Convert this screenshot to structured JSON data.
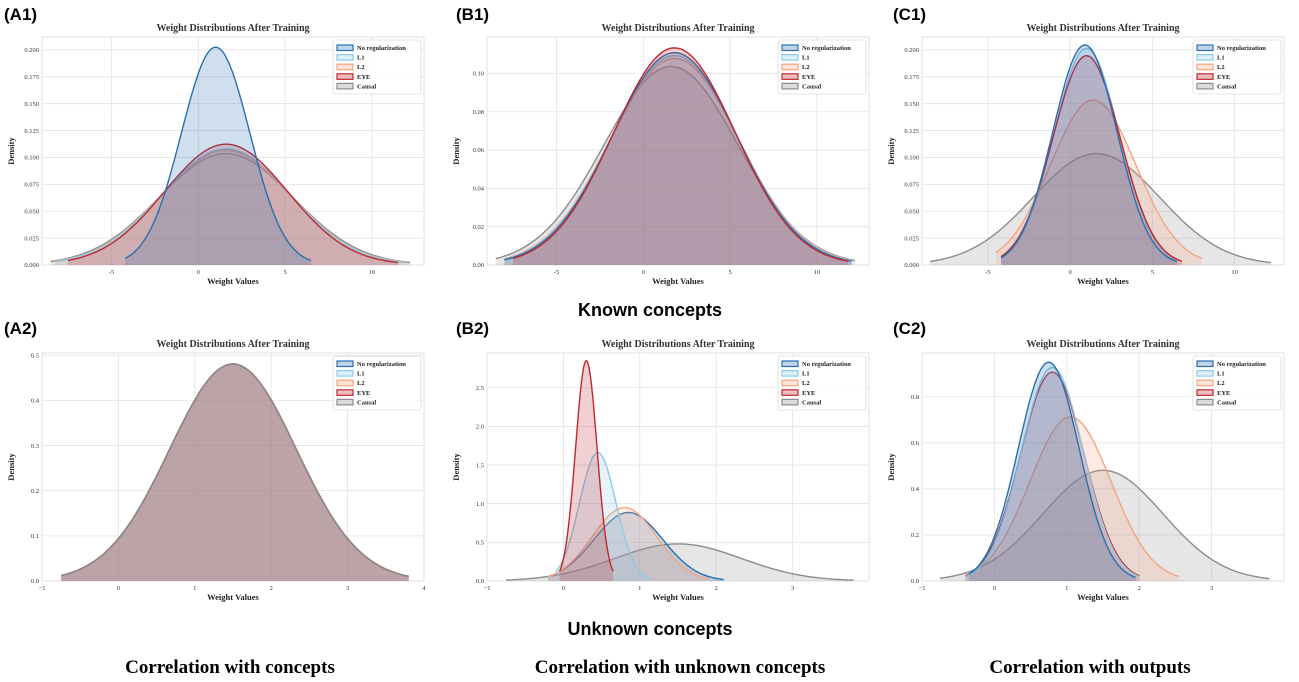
{
  "panels": [
    {
      "label": "(A1)"
    },
    {
      "label": "(B1)"
    },
    {
      "label": "(C1)"
    },
    {
      "label": "(A2)"
    },
    {
      "label": "(B2)"
    },
    {
      "label": "(C2)"
    }
  ],
  "row_labels": {
    "known": "Known concepts",
    "unknown": "Unknown concepts"
  },
  "column_labels": {
    "a": "Correlation with concepts",
    "b": "Correlation with unknown concepts",
    "c": "Correlation with outputs"
  },
  "colors": {
    "No regularization": "#2b6fb0",
    "L1": "#8ecae6",
    "L2": "#f4a582",
    "EYE": "#c1272d",
    "Causal": "#8c8c8c"
  },
  "chart_data": [
    {
      "type": "area",
      "title": "Weight Distributions After Training",
      "xlabel": "Weight Values",
      "ylabel": "Density",
      "xlim": [
        -9,
        13
      ],
      "ylim": [
        0,
        0.212
      ],
      "xticks": [
        -5,
        0,
        5,
        10
      ],
      "xtick_labels": [
        "-5",
        "0",
        "5",
        "10"
      ],
      "yticks": [
        0,
        0.025,
        0.05,
        0.075,
        0.1,
        0.125,
        0.15,
        0.175,
        0.2
      ],
      "ytick_labels": [
        "0.000",
        "0.025",
        "0.050",
        "0.075",
        "0.100",
        "0.125",
        "0.150",
        "0.175",
        "0.200"
      ],
      "grid": true,
      "legend": "top-right",
      "series": [
        {
          "name": "Causal",
          "mean": 1.6,
          "sd": 3.85,
          "range": [
            -8.5,
            12.2
          ]
        },
        {
          "name": "L2",
          "mean": 1.6,
          "sd": 3.75,
          "range": [
            -8.3,
            12
          ]
        },
        {
          "name": "L1",
          "mean": 1.6,
          "sd": 3.7,
          "range": [
            -8.2,
            11.8
          ]
        },
        {
          "name": "EYE",
          "mean": 1.6,
          "sd": 3.55,
          "range": [
            -7.5,
            11.5
          ]
        },
        {
          "name": "No regularization",
          "mean": 1.0,
          "sd": 1.97,
          "range": [
            -4.2,
            6.5
          ]
        }
      ]
    },
    {
      "type": "area",
      "title": "Weight Distributions After Training",
      "xlabel": "Weight Values",
      "ylabel": "Density",
      "xlim": [
        -9,
        13
      ],
      "ylim": [
        0,
        0.119
      ],
      "xticks": [
        -5,
        0,
        5,
        10
      ],
      "xtick_labels": [
        "-5",
        "0",
        "5",
        "10"
      ],
      "yticks": [
        0,
        0.02,
        0.04,
        0.06,
        0.08,
        0.1
      ],
      "ytick_labels": [
        "0.00",
        "0.02",
        "0.04",
        "0.06",
        "0.08",
        "0.10"
      ],
      "grid": true,
      "legend": "top-right",
      "series": [
        {
          "name": "Causal",
          "mean": 1.6,
          "sd": 3.85,
          "range": [
            -8.5,
            12.2
          ]
        },
        {
          "name": "L2",
          "mean": 1.8,
          "sd": 3.7,
          "range": [
            -8,
            12
          ]
        },
        {
          "name": "L1",
          "mean": 1.8,
          "sd": 3.65,
          "range": [
            -8,
            12
          ]
        },
        {
          "name": "No regularization",
          "mean": 1.8,
          "sd": 3.6,
          "range": [
            -8,
            12
          ]
        },
        {
          "name": "EYE",
          "mean": 1.8,
          "sd": 3.52,
          "range": [
            -7.5,
            11.8
          ]
        }
      ]
    },
    {
      "type": "area",
      "title": "Weight Distributions After Training",
      "xlabel": "Weight Values",
      "ylabel": "Density",
      "xlim": [
        -9,
        13
      ],
      "ylim": [
        0,
        0.212
      ],
      "xticks": [
        -5,
        0,
        5,
        10
      ],
      "xtick_labels": [
        "-5",
        "0",
        "5",
        "10"
      ],
      "yticks": [
        0,
        0.025,
        0.05,
        0.075,
        0.1,
        0.125,
        0.15,
        0.175,
        0.2
      ],
      "ytick_labels": [
        "0.000",
        "0.025",
        "0.050",
        "0.075",
        "0.100",
        "0.125",
        "0.150",
        "0.175",
        "0.200"
      ],
      "grid": true,
      "legend": "top-right",
      "series": [
        {
          "name": "Causal",
          "mean": 1.6,
          "sd": 3.85,
          "range": [
            -8.5,
            12.2
          ]
        },
        {
          "name": "L2",
          "mean": 1.4,
          "sd": 2.6,
          "range": [
            -4.5,
            8
          ]
        },
        {
          "name": "L1",
          "mean": 1.0,
          "sd": 1.98,
          "range": [
            -4.2,
            6.5
          ]
        },
        {
          "name": "EYE",
          "mean": 1.0,
          "sd": 2.05,
          "range": [
            -4.2,
            6.8
          ]
        },
        {
          "name": "No regularization",
          "mean": 0.9,
          "sd": 1.95,
          "range": [
            -4.2,
            6.5
          ]
        }
      ]
    },
    {
      "type": "area",
      "title": "Weight Distributions After Training",
      "xlabel": "Weight Values",
      "ylabel": "Density",
      "xlim": [
        -1,
        4
      ],
      "ylim": [
        0,
        0.505
      ],
      "xticks": [
        -1,
        0,
        1,
        2,
        3,
        4
      ],
      "xtick_labels": [
        "−1",
        "0",
        "1",
        "2",
        "3",
        "4"
      ],
      "yticks": [
        0,
        0.1,
        0.2,
        0.3,
        0.4,
        0.5
      ],
      "ytick_labels": [
        "0.0",
        "0.1",
        "0.2",
        "0.3",
        "0.4",
        "0.5"
      ],
      "grid": true,
      "legend": "top-right",
      "series": [
        {
          "name": "No regularization",
          "mean": 1.5,
          "sd": 0.83,
          "range": [
            -0.75,
            3.8
          ]
        },
        {
          "name": "L1",
          "mean": 1.5,
          "sd": 0.83,
          "range": [
            -0.75,
            3.8
          ]
        },
        {
          "name": "L2",
          "mean": 1.5,
          "sd": 0.83,
          "range": [
            -0.75,
            3.8
          ]
        },
        {
          "name": "EYE",
          "mean": 1.5,
          "sd": 0.83,
          "range": [
            -0.75,
            3.8
          ]
        },
        {
          "name": "Causal",
          "mean": 1.5,
          "sd": 0.83,
          "range": [
            -0.75,
            3.8
          ]
        }
      ]
    },
    {
      "type": "area",
      "title": "Weight Distributions After Training",
      "xlabel": "Weight Values",
      "ylabel": "Density",
      "xlim": [
        -1,
        4
      ],
      "ylim": [
        0,
        2.95
      ],
      "xticks": [
        -1,
        0,
        1,
        2,
        3
      ],
      "xtick_labels": [
        "−1",
        "0",
        "1",
        "2",
        "3"
      ],
      "yticks": [
        0,
        0.5,
        1,
        1.5,
        2,
        2.5
      ],
      "ytick_labels": [
        "0.0",
        "0.5",
        "1.0",
        "1.5",
        "2.0",
        "2.5"
      ],
      "grid": true,
      "legend": "top-right",
      "series": [
        {
          "name": "Causal",
          "mean": 1.5,
          "sd": 0.83,
          "range": [
            -0.75,
            3.8
          ]
        },
        {
          "name": "No regularization",
          "mean": 0.85,
          "sd": 0.45,
          "range": [
            -0.2,
            2.1
          ]
        },
        {
          "name": "L2",
          "mean": 0.8,
          "sd": 0.42,
          "range": [
            -0.2,
            1.9
          ]
        },
        {
          "name": "L1",
          "mean": 0.45,
          "sd": 0.24,
          "range": [
            -0.1,
            1.15
          ]
        },
        {
          "name": "EYE",
          "mean": 0.3,
          "sd": 0.14,
          "range": [
            -0.05,
            0.65
          ]
        }
      ]
    },
    {
      "type": "area",
      "title": "Weight Distributions After Training",
      "xlabel": "Weight Values",
      "ylabel": "Density",
      "xlim": [
        -1,
        4
      ],
      "ylim": [
        0,
        0.99
      ],
      "xticks": [
        -1,
        0,
        1,
        2,
        3
      ],
      "xtick_labels": [
        "−1",
        "0",
        "1",
        "2",
        "3"
      ],
      "yticks": [
        0,
        0.2,
        0.4,
        0.6,
        0.8
      ],
      "ytick_labels": [
        "0.0",
        "0.2",
        "0.4",
        "0.6",
        "0.8"
      ],
      "grid": true,
      "legend": "top-right",
      "series": [
        {
          "name": "Causal",
          "mean": 1.5,
          "sd": 0.83,
          "range": [
            -0.75,
            3.8
          ]
        },
        {
          "name": "L2",
          "mean": 1.05,
          "sd": 0.56,
          "range": [
            -0.4,
            2.55
          ]
        },
        {
          "name": "EYE",
          "mean": 0.8,
          "sd": 0.44,
          "range": [
            -0.4,
            2.0
          ]
        },
        {
          "name": "L1",
          "mean": 0.8,
          "sd": 0.43,
          "range": [
            -0.4,
            2.0
          ]
        },
        {
          "name": "No regularization",
          "mean": 0.75,
          "sd": 0.42,
          "range": [
            -0.35,
            1.95
          ]
        }
      ]
    }
  ],
  "legend_order": [
    "No regularization",
    "L1",
    "L2",
    "EYE",
    "Causal"
  ]
}
